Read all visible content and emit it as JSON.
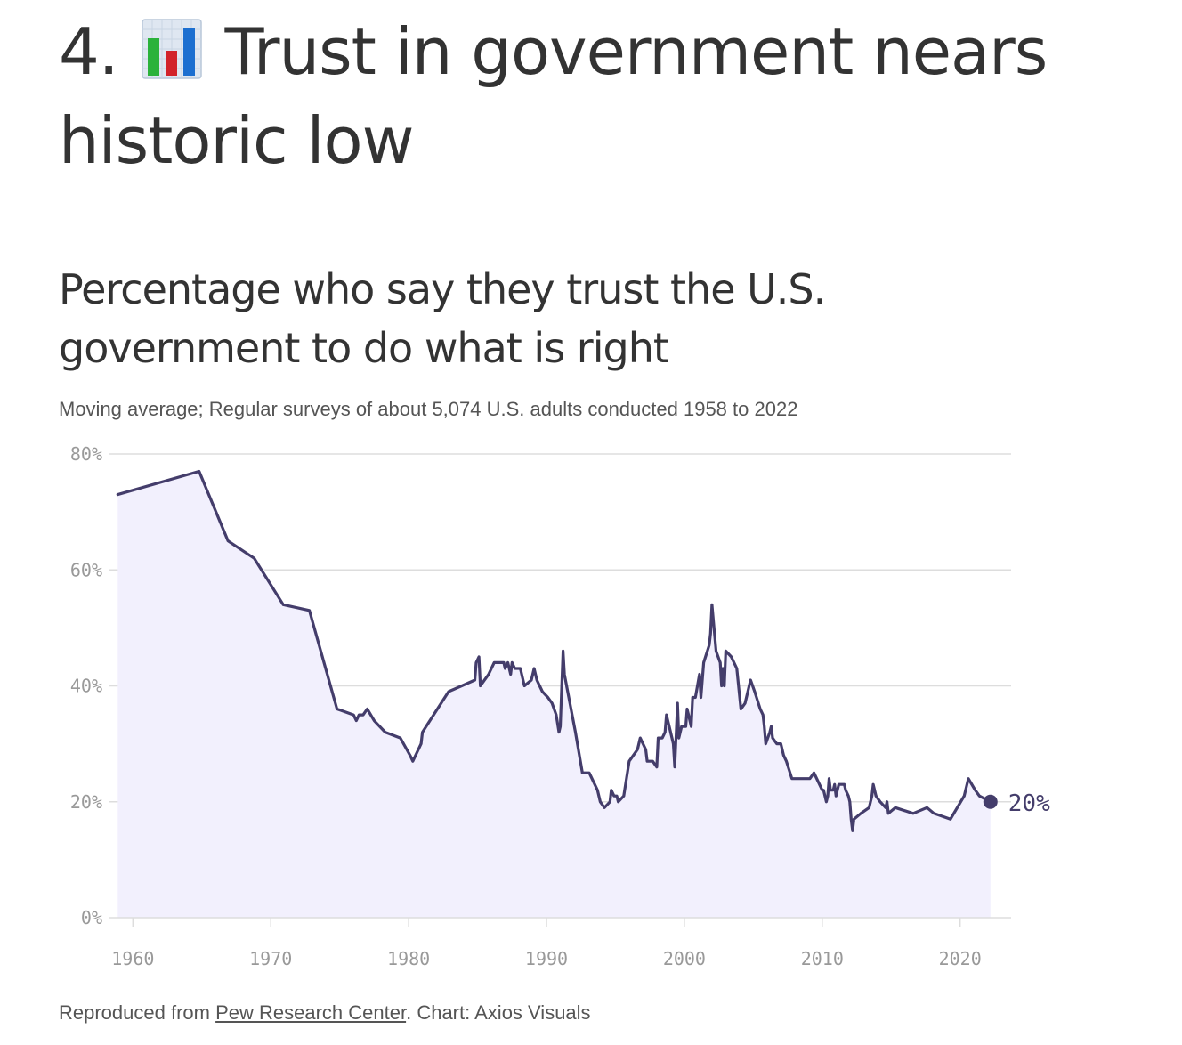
{
  "header": {
    "number": "4.",
    "emoji_icon": "bar-chart-emoji-icon",
    "title": "Trust in government nears historic low"
  },
  "footer": {
    "prefix": "Reproduced from ",
    "source_link": "Pew Research Center",
    "suffix": ". Chart: Axios Visuals"
  },
  "colors": {
    "line": "#443d6b",
    "area": "#f2f0fd",
    "grid": "#dddddd",
    "tick_text": "#999999",
    "text": "#333333"
  },
  "chart_data": {
    "type": "area",
    "title": "Percentage who say they trust the U.S. government to do what is right",
    "subtitle": "Moving average; Regular surveys of about 5,074 U.S. adults conducted 1958 to 2022",
    "xlabel": "",
    "ylabel": "",
    "xlim": [
      1958.3,
      2023.7
    ],
    "ylim": [
      0,
      80
    ],
    "x_ticks": [
      1960,
      1970,
      1980,
      1990,
      2000,
      2010,
      2020
    ],
    "y_ticks": [
      0,
      20,
      40,
      60,
      80
    ],
    "y_tick_labels": [
      "0%",
      "20%",
      "40%",
      "60%",
      "80%"
    ],
    "grid": true,
    "end_label": "20%",
    "series": [
      {
        "points": [
          [
            1958.9,
            73
          ],
          [
            1964.8,
            77
          ],
          [
            1966.9,
            65
          ],
          [
            1968.8,
            62
          ],
          [
            1970.9,
            54
          ],
          [
            1972.8,
            53
          ],
          [
            1974.8,
            36
          ],
          [
            1976.0,
            35
          ],
          [
            1976.2,
            34
          ],
          [
            1976.4,
            35
          ],
          [
            1976.7,
            35
          ],
          [
            1977.0,
            36
          ],
          [
            1977.5,
            34
          ],
          [
            1978.3,
            32
          ],
          [
            1979.4,
            31
          ],
          [
            1980.1,
            28
          ],
          [
            1980.3,
            27
          ],
          [
            1980.9,
            30
          ],
          [
            1981.0,
            32
          ],
          [
            1982.9,
            39
          ],
          [
            1984.8,
            41
          ],
          [
            1984.9,
            44
          ],
          [
            1985.1,
            45
          ],
          [
            1985.2,
            40
          ],
          [
            1985.8,
            42
          ],
          [
            1986.2,
            44
          ],
          [
            1986.9,
            44
          ],
          [
            1987.0,
            43
          ],
          [
            1987.2,
            44
          ],
          [
            1987.4,
            42
          ],
          [
            1987.5,
            44
          ],
          [
            1987.7,
            43
          ],
          [
            1988.1,
            43
          ],
          [
            1988.4,
            40
          ],
          [
            1988.9,
            41
          ],
          [
            1989.1,
            43
          ],
          [
            1989.3,
            41
          ],
          [
            1989.7,
            39
          ],
          [
            1990.1,
            38
          ],
          [
            1990.4,
            37
          ],
          [
            1990.7,
            35
          ],
          [
            1990.9,
            32
          ],
          [
            1991.0,
            33
          ],
          [
            1991.2,
            46
          ],
          [
            1991.3,
            42
          ],
          [
            1992.1,
            32
          ],
          [
            1992.6,
            25
          ],
          [
            1993.1,
            25
          ],
          [
            1993.7,
            22
          ],
          [
            1993.9,
            20
          ],
          [
            1994.2,
            19
          ],
          [
            1994.6,
            20
          ],
          [
            1994.7,
            22
          ],
          [
            1994.9,
            21
          ],
          [
            1995.1,
            21
          ],
          [
            1995.2,
            20
          ],
          [
            1995.6,
            21
          ],
          [
            1996.0,
            27
          ],
          [
            1996.6,
            29
          ],
          [
            1996.8,
            31
          ],
          [
            1997.2,
            29
          ],
          [
            1997.3,
            27
          ],
          [
            1997.7,
            27
          ],
          [
            1998.0,
            26
          ],
          [
            1998.1,
            31
          ],
          [
            1998.4,
            31
          ],
          [
            1998.6,
            32
          ],
          [
            1998.7,
            35
          ],
          [
            1998.9,
            33
          ],
          [
            1999.2,
            30
          ],
          [
            1999.3,
            26
          ],
          [
            1999.5,
            37
          ],
          [
            1999.6,
            31
          ],
          [
            1999.8,
            33
          ],
          [
            2000.1,
            33
          ],
          [
            2000.2,
            36
          ],
          [
            2000.3,
            35
          ],
          [
            2000.5,
            33
          ],
          [
            2000.6,
            38
          ],
          [
            2000.8,
            38
          ],
          [
            2001.1,
            42
          ],
          [
            2001.2,
            38
          ],
          [
            2001.4,
            44
          ],
          [
            2001.8,
            47
          ],
          [
            2001.9,
            49
          ],
          [
            2002.0,
            54
          ],
          [
            2002.3,
            46
          ],
          [
            2002.6,
            44
          ],
          [
            2002.7,
            40
          ],
          [
            2002.8,
            43
          ],
          [
            2002.9,
            40
          ],
          [
            2003.0,
            46
          ],
          [
            2003.4,
            45
          ],
          [
            2003.8,
            43
          ],
          [
            2004.1,
            36
          ],
          [
            2004.4,
            37
          ],
          [
            2004.7,
            40
          ],
          [
            2004.8,
            41
          ],
          [
            2005.1,
            39
          ],
          [
            2005.5,
            36
          ],
          [
            2005.7,
            35
          ],
          [
            2005.8,
            33
          ],
          [
            2005.9,
            30
          ],
          [
            2006.2,
            32
          ],
          [
            2006.3,
            33
          ],
          [
            2006.4,
            31
          ],
          [
            2006.7,
            30
          ],
          [
            2007.0,
            30
          ],
          [
            2007.2,
            28
          ],
          [
            2007.4,
            27
          ],
          [
            2007.8,
            24
          ],
          [
            2008.1,
            24
          ],
          [
            2009.1,
            24
          ],
          [
            2009.4,
            25
          ],
          [
            2009.6,
            24
          ],
          [
            2010.0,
            22
          ],
          [
            2010.1,
            22
          ],
          [
            2010.3,
            20
          ],
          [
            2010.4,
            21
          ],
          [
            2010.5,
            24
          ],
          [
            2010.6,
            22
          ],
          [
            2010.8,
            22
          ],
          [
            2010.9,
            23
          ],
          [
            2011.0,
            21
          ],
          [
            2011.2,
            23
          ],
          [
            2011.6,
            23
          ],
          [
            2011.7,
            22
          ],
          [
            2011.9,
            21
          ],
          [
            2012.0,
            20
          ],
          [
            2012.1,
            17
          ],
          [
            2012.2,
            15
          ],
          [
            2012.3,
            17
          ],
          [
            2012.8,
            18
          ],
          [
            2013.4,
            19
          ],
          [
            2013.6,
            21
          ],
          [
            2013.7,
            23
          ],
          [
            2013.9,
            21
          ],
          [
            2014.2,
            20
          ],
          [
            2014.6,
            19
          ],
          [
            2014.7,
            20
          ],
          [
            2014.8,
            18
          ],
          [
            2015.3,
            19
          ],
          [
            2016.6,
            18
          ],
          [
            2017.6,
            19
          ],
          [
            2018.1,
            18
          ],
          [
            2019.3,
            17
          ],
          [
            2020.3,
            21
          ],
          [
            2020.6,
            24
          ],
          [
            2021.1,
            22
          ],
          [
            2021.4,
            21
          ],
          [
            2022.2,
            20
          ]
        ]
      }
    ]
  }
}
